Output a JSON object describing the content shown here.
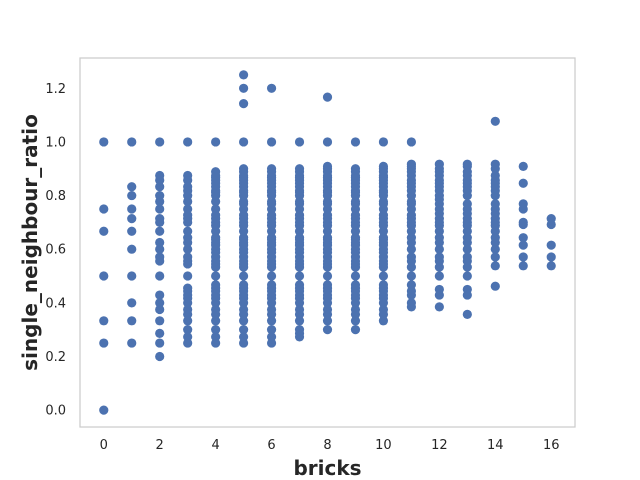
{
  "chart_data": {
    "type": "scatter",
    "xlabel": "bricks",
    "ylabel": "single_neighbour_ratio",
    "xlim": [
      -0.85,
      16.85
    ],
    "ylim": [
      -0.063,
      1.313
    ],
    "xticks": [
      0,
      2,
      4,
      6,
      8,
      10,
      12,
      14,
      16
    ],
    "yticks": [
      0.0,
      0.2,
      0.4,
      0.6,
      0.8,
      1.0,
      1.2
    ],
    "xtick_labels": [
      "0",
      "2",
      "4",
      "6",
      "8",
      "10",
      "12",
      "14",
      "16"
    ],
    "ytick_labels": [
      "0.0",
      "0.2",
      "0.4",
      "0.6",
      "0.8",
      "1.0",
      "1.2"
    ],
    "grid": false,
    "marker_color": "#4c72b0",
    "series": [
      {
        "columns": [
          {
            "x": 0,
            "y": [
              0.0,
              0.25,
              0.333,
              0.5,
              0.667,
              0.75,
              1.0
            ]
          },
          {
            "x": 1,
            "y": [
              0.25,
              0.333,
              0.4,
              0.5,
              0.6,
              0.667,
              0.714,
              0.75,
              0.8,
              0.833,
              1.0
            ]
          },
          {
            "x": 2,
            "y": [
              0.2,
              0.25,
              0.286,
              0.333,
              0.375,
              0.4,
              0.429,
              0.5,
              0.556,
              0.571,
              0.6,
              0.625,
              0.667,
              0.7,
              0.714,
              0.75,
              0.778,
              0.8,
              0.833,
              0.857,
              0.875,
              1.0
            ]
          },
          {
            "x": 3,
            "y": [
              0.25,
              0.273,
              0.3,
              0.333,
              0.357,
              0.375,
              0.4,
              0.417,
              0.429,
              0.444,
              0.455,
              0.5,
              0.545,
              0.556,
              0.571,
              0.6,
              0.625,
              0.643,
              0.667,
              0.7,
              0.714,
              0.727,
              0.75,
              0.778,
              0.8,
              0.818,
              0.833,
              0.857,
              0.875,
              1.0
            ]
          },
          {
            "x": 4,
            "y": [
              0.25,
              0.273,
              0.3,
              0.333,
              0.357,
              0.375,
              0.4,
              0.417,
              0.429,
              0.444,
              0.455,
              0.467,
              0.5,
              0.533,
              0.545,
              0.556,
              0.571,
              0.588,
              0.6,
              0.615,
              0.625,
              0.636,
              0.643,
              0.667,
              0.688,
              0.7,
              0.714,
              0.727,
              0.75,
              0.778,
              0.8,
              0.812,
              0.818,
              0.833,
              0.846,
              0.857,
              0.867,
              0.875,
              0.889,
              1.0
            ]
          },
          {
            "x": 5,
            "y": [
              0.25,
              0.273,
              0.3,
              0.333,
              0.357,
              0.375,
              0.4,
              0.417,
              0.429,
              0.444,
              0.455,
              0.467,
              0.5,
              0.533,
              0.545,
              0.556,
              0.571,
              0.588,
              0.6,
              0.615,
              0.625,
              0.636,
              0.643,
              0.667,
              0.688,
              0.7,
              0.714,
              0.727,
              0.75,
              0.769,
              0.778,
              0.8,
              0.812,
              0.818,
              0.833,
              0.846,
              0.857,
              0.867,
              0.875,
              0.889,
              0.9,
              1.0,
              1.143,
              1.2,
              1.25
            ]
          },
          {
            "x": 6,
            "y": [
              0.25,
              0.273,
              0.3,
              0.333,
              0.357,
              0.375,
              0.4,
              0.417,
              0.429,
              0.444,
              0.455,
              0.467,
              0.5,
              0.533,
              0.545,
              0.556,
              0.571,
              0.588,
              0.6,
              0.615,
              0.625,
              0.636,
              0.643,
              0.667,
              0.688,
              0.7,
              0.714,
              0.727,
              0.75,
              0.769,
              0.778,
              0.8,
              0.812,
              0.818,
              0.833,
              0.846,
              0.857,
              0.867,
              0.875,
              0.889,
              0.9,
              1.0,
              1.2
            ]
          },
          {
            "x": 7,
            "y": [
              0.273,
              0.286,
              0.3,
              0.333,
              0.357,
              0.375,
              0.4,
              0.417,
              0.429,
              0.444,
              0.455,
              0.467,
              0.5,
              0.533,
              0.545,
              0.556,
              0.571,
              0.588,
              0.6,
              0.615,
              0.625,
              0.636,
              0.643,
              0.667,
              0.688,
              0.7,
              0.714,
              0.727,
              0.75,
              0.769,
              0.778,
              0.8,
              0.812,
              0.818,
              0.833,
              0.846,
              0.857,
              0.867,
              0.875,
              0.889,
              0.9,
              1.0
            ]
          },
          {
            "x": 8,
            "y": [
              0.3,
              0.333,
              0.357,
              0.375,
              0.4,
              0.417,
              0.429,
              0.444,
              0.455,
              0.467,
              0.5,
              0.533,
              0.545,
              0.556,
              0.571,
              0.588,
              0.6,
              0.615,
              0.625,
              0.636,
              0.643,
              0.667,
              0.688,
              0.7,
              0.714,
              0.727,
              0.75,
              0.769,
              0.778,
              0.8,
              0.812,
              0.818,
              0.833,
              0.846,
              0.857,
              0.867,
              0.875,
              0.889,
              0.9,
              0.909,
              1.0,
              1.167
            ]
          },
          {
            "x": 9,
            "y": [
              0.3,
              0.333,
              0.357,
              0.375,
              0.4,
              0.417,
              0.429,
              0.444,
              0.455,
              0.467,
              0.5,
              0.533,
              0.545,
              0.556,
              0.571,
              0.588,
              0.6,
              0.615,
              0.625,
              0.636,
              0.643,
              0.667,
              0.688,
              0.7,
              0.714,
              0.727,
              0.75,
              0.769,
              0.778,
              0.8,
              0.812,
              0.818,
              0.833,
              0.846,
              0.857,
              0.867,
              0.875,
              0.889,
              0.9,
              1.0
            ]
          },
          {
            "x": 10,
            "y": [
              0.333,
              0.357,
              0.375,
              0.4,
              0.417,
              0.429,
              0.444,
              0.455,
              0.467,
              0.5,
              0.533,
              0.545,
              0.556,
              0.571,
              0.588,
              0.6,
              0.615,
              0.625,
              0.636,
              0.643,
              0.667,
              0.688,
              0.7,
              0.714,
              0.727,
              0.75,
              0.769,
              0.778,
              0.8,
              0.812,
              0.818,
              0.833,
              0.846,
              0.857,
              0.867,
              0.875,
              0.889,
              0.9,
              0.909,
              1.0
            ]
          },
          {
            "x": 11,
            "y": [
              0.385,
              0.4,
              0.429,
              0.444,
              0.467,
              0.5,
              0.533,
              0.556,
              0.571,
              0.6,
              0.625,
              0.643,
              0.667,
              0.688,
              0.7,
              0.714,
              0.727,
              0.75,
              0.769,
              0.778,
              0.8,
              0.818,
              0.833,
              0.846,
              0.857,
              0.875,
              0.889,
              0.9,
              0.909,
              0.917,
              1.0
            ]
          },
          {
            "x": 12,
            "y": [
              0.385,
              0.429,
              0.45,
              0.5,
              0.533,
              0.556,
              0.571,
              0.6,
              0.625,
              0.643,
              0.667,
              0.688,
              0.7,
              0.714,
              0.733,
              0.75,
              0.769,
              0.786,
              0.8,
              0.818,
              0.833,
              0.846,
              0.857,
              0.875,
              0.889,
              0.9,
              0.917
            ]
          },
          {
            "x": 13,
            "y": [
              0.357,
              0.429,
              0.45,
              0.5,
              0.533,
              0.556,
              0.571,
              0.6,
              0.625,
              0.643,
              0.667,
              0.688,
              0.7,
              0.714,
              0.733,
              0.75,
              0.769,
              0.8,
              0.818,
              0.833,
              0.846,
              0.857,
              0.875,
              0.889,
              0.909,
              0.917
            ]
          },
          {
            "x": 14,
            "y": [
              0.462,
              0.538,
              0.571,
              0.6,
              0.625,
              0.643,
              0.667,
              0.688,
              0.7,
              0.714,
              0.733,
              0.75,
              0.769,
              0.8,
              0.818,
              0.833,
              0.846,
              0.857,
              0.875,
              0.9,
              0.917,
              1.077
            ]
          },
          {
            "x": 15,
            "y": [
              0.538,
              0.571,
              0.615,
              0.643,
              0.692,
              0.7,
              0.75,
              0.769,
              0.846,
              0.909
            ]
          },
          {
            "x": 16,
            "y": [
              0.538,
              0.571,
              0.615,
              0.692,
              0.714
            ]
          }
        ]
      }
    ]
  }
}
